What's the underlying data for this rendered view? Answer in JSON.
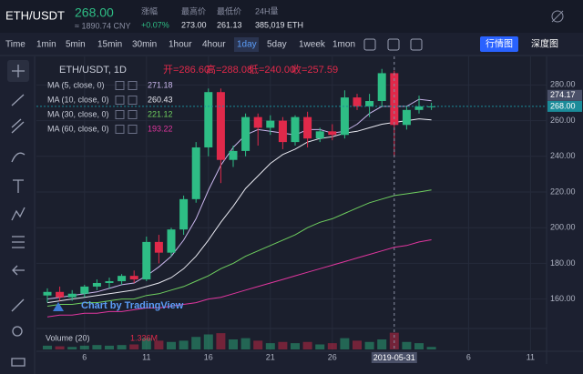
{
  "header": {
    "pair": "ETH/USDT",
    "price": "268.00",
    "cny": "≈ 1890.74 CNY",
    "stats": [
      {
        "label": "涨幅",
        "value": "+0.07%"
      },
      {
        "label": "最高价",
        "value": "273.00"
      },
      {
        "label": "最低价",
        "value": "261.13"
      },
      {
        "label": "24H量",
        "value": "385,019 ETH"
      }
    ]
  },
  "toolbar": {
    "intervals": [
      "Time",
      "1min",
      "5min",
      "15min",
      "30min",
      "1hour",
      "4hour",
      "1day",
      "5day",
      "1week",
      "1mon"
    ],
    "active_index": 7,
    "views": [
      "行情图",
      "深度图"
    ],
    "active_view": 0
  },
  "chart_data": {
    "type": "candlestick",
    "title": "ETH/USDT, 1D",
    "ohlc_legend": [
      "开=286.60",
      "高=288.08",
      "低=240.00",
      "收=257.59"
    ],
    "x": [
      "2019-05-03",
      "2019-05-04",
      "2019-05-05",
      "2019-05-06",
      "2019-05-07",
      "2019-05-08",
      "2019-05-09",
      "2019-05-10",
      "2019-05-11",
      "2019-05-12",
      "2019-05-13",
      "2019-05-14",
      "2019-05-15",
      "2019-05-16",
      "2019-05-17",
      "2019-05-18",
      "2019-05-19",
      "2019-05-20",
      "2019-05-21",
      "2019-05-22",
      "2019-05-23",
      "2019-05-24",
      "2019-05-25",
      "2019-05-26",
      "2019-05-27",
      "2019-05-28",
      "2019-05-29",
      "2019-05-30",
      "2019-05-31",
      "2019-06-01",
      "2019-06-02",
      "2019-06-03"
    ],
    "open": [
      162,
      164,
      161,
      163,
      167,
      169,
      170,
      173,
      171,
      192,
      186,
      199,
      216,
      245,
      276,
      238,
      243,
      262,
      256,
      260,
      248,
      262,
      250,
      254,
      252,
      273,
      268,
      271,
      286.6,
      257.59,
      266,
      268
    ],
    "high": [
      166,
      167,
      165,
      168,
      171,
      172,
      174,
      176,
      195,
      196,
      200,
      218,
      248,
      278,
      278,
      246,
      264,
      264,
      263,
      262,
      263,
      265,
      256,
      258,
      277,
      275,
      275,
      289,
      288.08,
      268,
      274,
      270
    ],
    "low": [
      158,
      159,
      159,
      161,
      165,
      166,
      168,
      169,
      170,
      180,
      184,
      196,
      214,
      240,
      225,
      234,
      240,
      246,
      252,
      244,
      246,
      245,
      248,
      249,
      250,
      266,
      262,
      268,
      240,
      255,
      264,
      266
    ],
    "close": [
      164,
      161,
      163,
      167,
      169,
      170,
      173,
      171,
      192,
      186,
      199,
      216,
      245,
      276,
      238,
      243,
      262,
      256,
      260,
      248,
      262,
      250,
      254,
      252,
      273,
      268,
      271,
      286.6,
      257.59,
      266,
      268,
      268
    ],
    "up_color": "#2ebd85",
    "down_color": "#e0294a",
    "series": [
      {
        "name": "MA (5, close, 0)",
        "color": "#c9b6ec",
        "values": [
          160,
          161,
          162,
          163,
          164,
          166,
          168,
          169,
          173,
          178,
          184,
          193,
          205,
          221,
          235,
          245,
          252,
          255,
          254,
          253,
          252,
          255,
          255,
          253,
          254,
          258,
          264,
          268,
          268,
          268,
          272,
          271.18
        ]
      },
      {
        "name": "MA (10, close, 0)",
        "color": "#e8e8f0",
        "values": [
          158,
          159,
          160,
          161,
          162,
          163,
          164,
          165,
          167,
          169,
          172,
          177,
          184,
          193,
          203,
          212,
          222,
          229,
          236,
          241,
          244,
          248,
          250,
          251,
          253,
          254,
          256,
          258,
          259,
          260,
          261,
          260.43
        ]
      },
      {
        "name": "MA (30, close, 0)",
        "color": "#6fcf5f",
        "values": [
          156,
          157,
          157,
          158,
          158,
          159,
          160,
          160,
          162,
          163,
          165,
          167,
          170,
          173,
          177,
          180,
          184,
          187,
          190,
          193,
          196,
          200,
          203,
          205,
          208,
          211,
          214,
          216,
          218,
          219,
          220,
          221.12
        ]
      },
      {
        "name": "MA (60, close, 0)",
        "color": "#e0369e",
        "values": [
          150,
          151,
          151,
          152,
          152,
          153,
          153,
          154,
          155,
          155,
          156,
          157,
          158,
          160,
          161,
          163,
          165,
          167,
          169,
          171,
          173,
          175,
          177,
          179,
          181,
          183,
          185,
          187,
          189,
          190,
          192,
          193.22
        ]
      }
    ],
    "ylim": [
      144,
      296
    ],
    "yticks": [
      {
        "value": 160,
        "label": "160.00"
      },
      {
        "value": 180,
        "label": "180.00"
      },
      {
        "value": 200,
        "label": "200.00"
      },
      {
        "value": 220,
        "label": "220.00"
      },
      {
        "value": 240,
        "label": "240.00"
      },
      {
        "value": 260,
        "label": "260.00"
      },
      {
        "value": 280,
        "label": "280.00"
      }
    ],
    "price_labels": [
      {
        "value": 274.17,
        "label": "274.17",
        "color": "#4a5068"
      },
      {
        "value": 268,
        "label": "268.00",
        "color": "#1b8b99"
      }
    ],
    "xticks": [
      {
        "value": "2019-05-06",
        "label": "6"
      },
      {
        "value": "2019-05-11",
        "label": "11"
      },
      {
        "value": "2019-05-16",
        "label": "16"
      },
      {
        "value": "2019-05-21",
        "label": "21"
      },
      {
        "value": "2019-05-26",
        "label": "26"
      },
      {
        "value": "2019-06-06",
        "label": "6"
      },
      {
        "value": "2019-06-11",
        "label": "11"
      }
    ],
    "crosshair": {
      "value": "2019-05-31",
      "label": "2019-05-31"
    },
    "volume": {
      "title": "Volume (20)",
      "values": [
        0.3,
        0.25,
        0.2,
        0.3,
        0.35,
        0.3,
        0.35,
        0.4,
        0.9,
        0.7,
        0.6,
        0.7,
        1.0,
        1.2,
        1.3,
        0.8,
        0.9,
        0.7,
        0.5,
        0.6,
        0.5,
        0.6,
        0.4,
        0.5,
        0.9,
        0.7,
        0.6,
        0.8,
        1.336,
        0.6,
        0.5,
        0.2
      ],
      "value_label": "1.336M",
      "ylim": [
        0,
        1.6
      ]
    },
    "watermark": "Chart by TradingView",
    "grid": true
  }
}
